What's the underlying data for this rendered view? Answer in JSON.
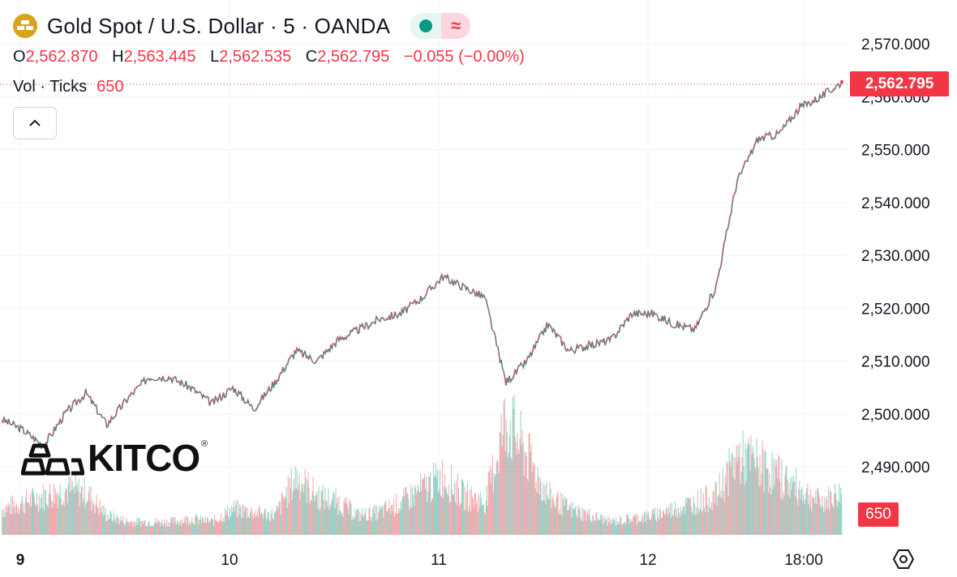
{
  "header": {
    "title": "Gold Spot / U.S. Dollar · 5 · OANDA",
    "flag_icon": "wave-icon",
    "symbol_icon": "gold-bars-icon"
  },
  "ohlc": {
    "o_label": "O",
    "o_value": "2,562.870",
    "h_label": "H",
    "h_value": "2,563.445",
    "l_label": "L",
    "l_value": "2,562.535",
    "c_label": "C",
    "c_value": "2,562.795",
    "change": "−0.055 (−0.00%)"
  },
  "volume": {
    "label": "Vol · Ticks",
    "value": "650"
  },
  "watermark": {
    "text": "KITCO",
    "mark": "®"
  },
  "current_price_label": "2,562.795",
  "volume_label": "650",
  "colors": {
    "up": "#089981",
    "down": "#f23645",
    "gold": "#d9a21b",
    "grid": "#f0f3fa"
  },
  "chart_data": {
    "type": "line",
    "title": "Gold Spot / U.S. Dollar · 5 · OANDA",
    "xlabel": "",
    "ylabel": "",
    "x_ticks": [
      "9",
      "10",
      "11",
      "12",
      "18:00"
    ],
    "y_ticks": [
      "2,490.000",
      "2,500.000",
      "2,510.000",
      "2,520.000",
      "2,530.000",
      "2,540.000",
      "2,550.000",
      "2,560.000",
      "2,570.000"
    ],
    "y_tick_values": [
      2490,
      2500,
      2510,
      2520,
      2530,
      2540,
      2550,
      2560,
      2570
    ],
    "ylim": [
      2480,
      2572
    ],
    "grid": true,
    "price_series": {
      "name": "",
      "x": [
        "9",
        "9.1",
        "9.2",
        "9.3",
        "9.4",
        "9.5",
        "9.6",
        "9.7",
        "9.8",
        "9.9",
        "10",
        "10.1",
        "10.2",
        "10.3",
        "10.4",
        "10.5",
        "10.6",
        "10.7",
        "10.8",
        "10.9",
        "11",
        "11.1",
        "11.2",
        "11.3",
        "11.4",
        "11.5",
        "11.6",
        "11.7",
        "11.8",
        "11.9",
        "12",
        "12.1",
        "12.2",
        "12.3",
        "12.4",
        "12.5",
        "12.6",
        "12.7",
        "12.8",
        "12.9",
        "13"
      ],
      "values": [
        2499,
        2497,
        2494,
        2500,
        2504,
        2498,
        2503,
        2507,
        2507,
        2505,
        2502,
        2505,
        2501,
        2506,
        2512,
        2510,
        2514,
        2516,
        2518,
        2519,
        2522,
        2526,
        2524,
        2522,
        2506,
        2510,
        2517,
        2512,
        2513,
        2514,
        2519,
        2519,
        2517,
        2516,
        2524,
        2544,
        2552,
        2553,
        2558,
        2560,
        2562.795
      ]
    },
    "volume_series": {
      "name": "Vol · Ticks",
      "x": [
        "9",
        "9.1",
        "9.2",
        "9.3",
        "9.4",
        "9.5",
        "9.6",
        "9.7",
        "9.8",
        "9.9",
        "10",
        "10.1",
        "10.2",
        "10.3",
        "10.4",
        "10.5",
        "10.6",
        "10.7",
        "10.8",
        "10.9",
        "11",
        "11.1",
        "11.2",
        "11.3",
        "11.4",
        "11.5",
        "11.6",
        "11.7",
        "11.8",
        "11.9",
        "12",
        "12.1",
        "12.2",
        "12.3",
        "12.4",
        "12.5",
        "12.6",
        "12.7",
        "12.8",
        "12.9",
        "13"
      ],
      "values": [
        400,
        500,
        600,
        700,
        650,
        300,
        200,
        200,
        200,
        250,
        200,
        400,
        350,
        300,
        900,
        600,
        500,
        300,
        350,
        500,
        700,
        900,
        600,
        500,
        1800,
        1200,
        600,
        400,
        300,
        200,
        250,
        300,
        400,
        500,
        600,
        1200,
        1100,
        900,
        700,
        500,
        650
      ]
    }
  }
}
